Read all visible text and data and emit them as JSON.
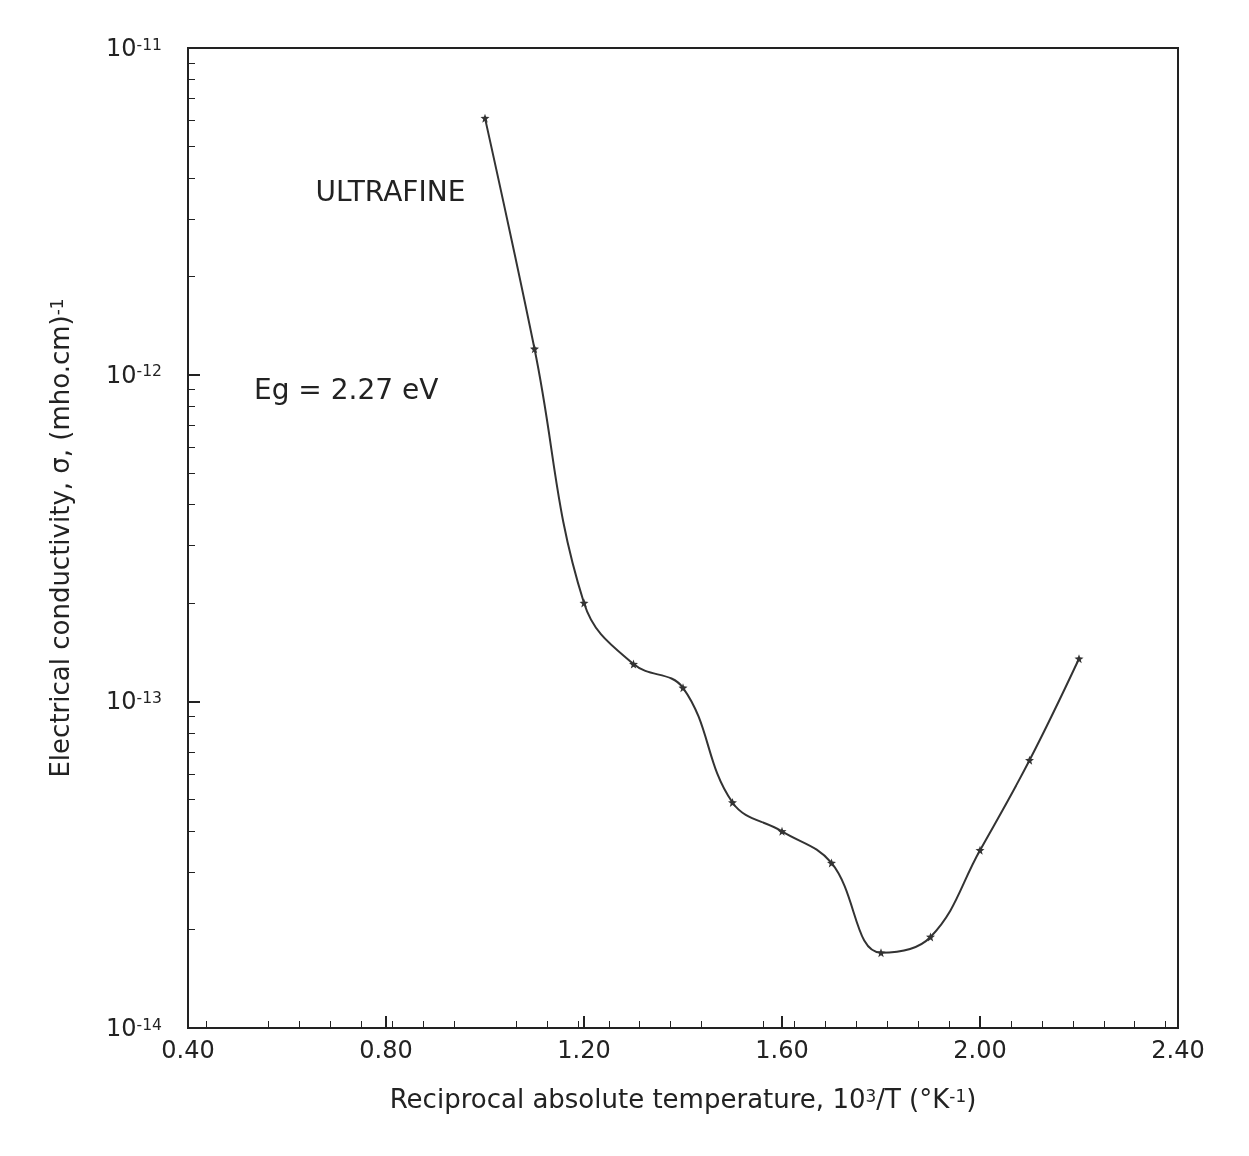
{
  "chart_data": {
    "type": "line",
    "xlabel": "Reciprocal absolute temperature, 10$^{3}$/T (°K$^{-1}$)",
    "ylabel": "Electrical conductivity, σ, (mho.cm)$^{-1}$",
    "annotations": [
      "ULTRAFINE",
      "Eg = 2.27 eV"
    ],
    "x": [
      1.0,
      1.1,
      1.2,
      1.3,
      1.4,
      1.5,
      1.6,
      1.7,
      1.8,
      1.9,
      2.0,
      2.1,
      2.2
    ],
    "series": [
      {
        "color": "#333333",
        "values": [
          6.1e-12,
          1.2e-12,
          2e-13,
          1.3e-13,
          1.1e-13,
          4.9e-14,
          4e-14,
          3.2e-14,
          1.7e-14,
          1.9e-14,
          3.5e-14,
          6.6e-14,
          1.35e-13
        ]
      }
    ],
    "xlim": [
      0.4,
      2.4
    ],
    "xticks": [
      {
        "value": 0.4,
        "label": "0.40"
      },
      {
        "value": 0.8,
        "label": "0.80"
      },
      {
        "value": 1.2,
        "label": "1.20"
      },
      {
        "value": 1.6,
        "label": "1.60"
      },
      {
        "value": 2.0,
        "label": "2.00"
      },
      {
        "value": 2.4,
        "label": "2.40"
      }
    ],
    "ylim": [
      1e-14,
      1e-11
    ],
    "yticks": [
      {
        "value": 1e-14,
        "label": "10$^{-14}$"
      },
      {
        "value": 1e-13,
        "label": "10$^{-13}$"
      },
      {
        "value": 1e-12,
        "label": "10$^{-12}$"
      },
      {
        "value": 1e-11,
        "label": "10$^{-11}$"
      }
    ],
    "log": "y",
    "grid": false,
    "marker": "star",
    "line_style": "solid"
  }
}
